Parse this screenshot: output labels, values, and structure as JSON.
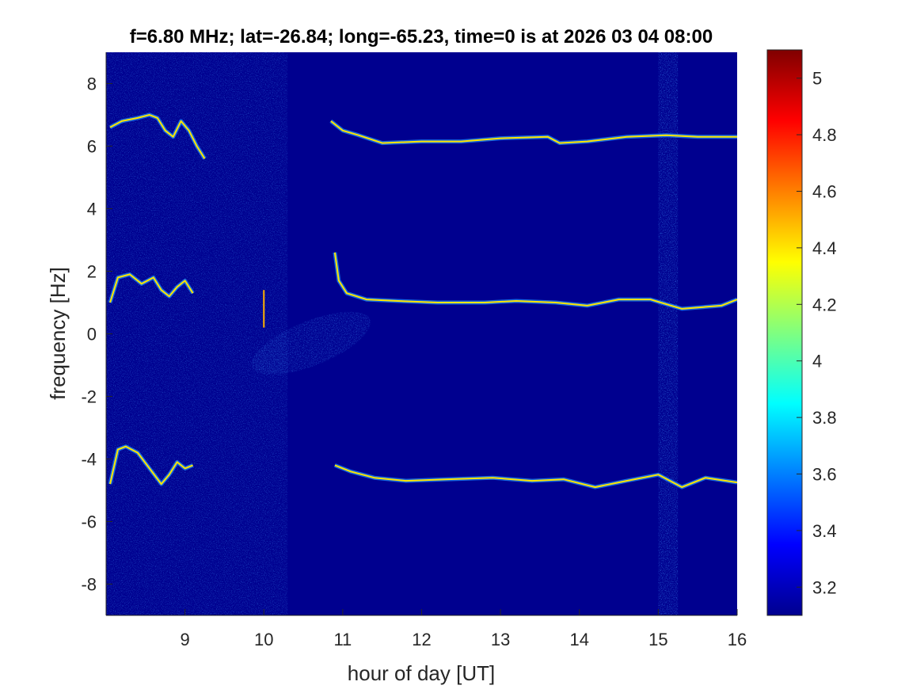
{
  "chart_data": {
    "type": "heatmap",
    "title": "f=6.80 MHz;  lat=-26.84; long=-65.23, time=0 is at 2026 03 04 08:00",
    "xlabel": "hour of day [UT]",
    "ylabel": "frequency [Hz]",
    "xlim": [
      8.0,
      16.0
    ],
    "ylim": [
      -9.0,
      9.0
    ],
    "x_ticks": [
      9,
      10,
      11,
      12,
      13,
      14,
      15,
      16
    ],
    "y_ticks": [
      -8,
      -6,
      -4,
      -2,
      0,
      2,
      4,
      6,
      8
    ],
    "colorbar": {
      "colormap": "jet",
      "clim": [
        3.1,
        5.1
      ],
      "ticks": [
        3.2,
        3.4,
        3.6,
        3.8,
        4,
        4.2,
        4.4,
        4.6,
        4.8,
        5
      ]
    },
    "background_color": "#00008f",
    "series": [
      {
        "x": [
          8.05,
          8.2,
          8.4,
          8.55,
          8.65,
          8.75,
          8.85,
          8.95,
          9.05,
          9.15,
          9.25
        ],
        "values": [
          6.6,
          6.8,
          6.9,
          7.0,
          6.9,
          6.5,
          6.3,
          6.8,
          6.5,
          6.0,
          5.6
        ]
      },
      {
        "x": [
          10.85,
          11.0,
          11.2,
          11.5,
          12.0,
          12.5,
          13.0,
          13.6,
          13.75,
          14.1,
          14.6,
          15.1,
          15.5,
          16.0
        ],
        "values": [
          6.8,
          6.5,
          6.35,
          6.1,
          6.15,
          6.15,
          6.25,
          6.3,
          6.1,
          6.15,
          6.3,
          6.35,
          6.3,
          6.3
        ]
      },
      {
        "x": [
          8.05,
          8.15,
          8.3,
          8.45,
          8.6,
          8.7,
          8.8,
          8.9,
          9.0,
          9.1
        ],
        "values": [
          1.0,
          1.8,
          1.9,
          1.6,
          1.8,
          1.4,
          1.2,
          1.5,
          1.7,
          1.3
        ]
      },
      {
        "x": [
          10.9,
          10.95,
          11.05,
          11.3,
          11.7,
          12.2,
          12.8,
          13.2,
          13.7,
          14.1,
          14.5,
          14.9,
          15.3,
          15.8,
          16.0
        ],
        "values": [
          2.6,
          1.7,
          1.3,
          1.1,
          1.05,
          1.0,
          1.0,
          1.05,
          1.0,
          0.9,
          1.1,
          1.1,
          0.8,
          0.9,
          1.1
        ]
      },
      {
        "x": [
          8.05,
          8.15,
          8.25,
          8.4,
          8.55,
          8.7,
          8.8,
          8.9,
          9.0,
          9.1
        ],
        "values": [
          -4.8,
          -3.7,
          -3.6,
          -3.8,
          -4.3,
          -4.8,
          -4.5,
          -4.1,
          -4.3,
          -4.2
        ]
      },
      {
        "x": [
          10.9,
          11.1,
          11.4,
          11.8,
          12.3,
          12.9,
          13.4,
          13.8,
          14.2,
          14.6,
          15.0,
          15.3,
          15.6,
          16.0
        ],
        "values": [
          -4.2,
          -4.4,
          -4.6,
          -4.7,
          -4.65,
          -4.6,
          -4.7,
          -4.65,
          -4.9,
          -4.7,
          -4.5,
          -4.9,
          -4.6,
          -4.75
        ]
      }
    ]
  }
}
